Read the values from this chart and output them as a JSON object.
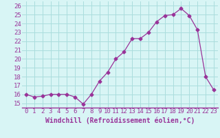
{
  "x": [
    0,
    1,
    2,
    3,
    4,
    5,
    6,
    7,
    8,
    9,
    10,
    11,
    12,
    13,
    14,
    15,
    16,
    17,
    18,
    19,
    20,
    21,
    22,
    23
  ],
  "y": [
    16.0,
    15.7,
    15.8,
    16.0,
    16.0,
    16.0,
    15.7,
    14.9,
    16.0,
    17.5,
    18.5,
    20.0,
    20.8,
    22.3,
    22.3,
    23.0,
    24.2,
    24.9,
    25.0,
    25.7,
    24.9,
    23.3,
    18.0,
    16.5
  ],
  "line_color": "#993399",
  "marker": "D",
  "markersize": 2.5,
  "bg_color": "#d8f5f5",
  "grid_color": "#aadddd",
  "xlabel": "Windchill (Refroidissement éolien,°C)",
  "xlabel_fontsize": 7,
  "xtick_labels": [
    "0",
    "1",
    "2",
    "3",
    "4",
    "5",
    "6",
    "7",
    "8",
    "9",
    "10",
    "11",
    "12",
    "13",
    "14",
    "15",
    "16",
    "17",
    "18",
    "19",
    "20",
    "21",
    "22",
    "23"
  ],
  "ytick_min": 15,
  "ytick_max": 26,
  "ytick_step": 1,
  "ylim": [
    14.5,
    26.5
  ],
  "xlim": [
    -0.5,
    23.5
  ],
  "tick_fontsize": 6.5,
  "tick_color": "#993399",
  "label_color": "#993399",
  "spine_color": "#993399"
}
